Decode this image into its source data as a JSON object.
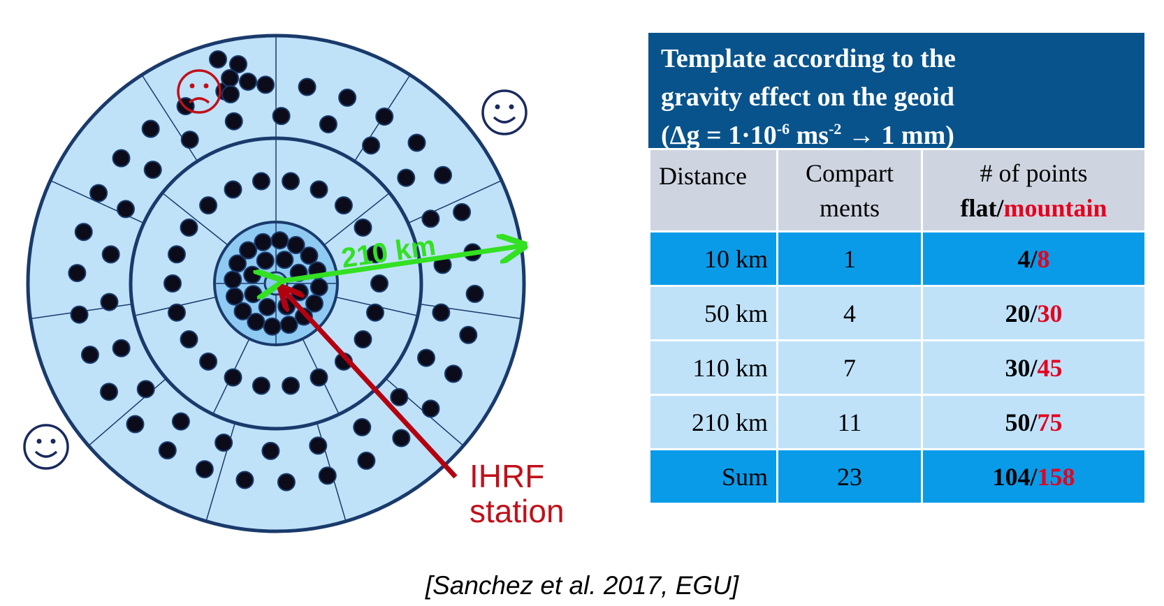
{
  "diagram": {
    "distance_label": "210 km",
    "station_label_line1": "IHRF",
    "station_label_line2": "station",
    "sad_face_icon": "frowning-face",
    "happy_face_icon": "smiling-face",
    "colors": {
      "zone_fill": "#bfe2f9",
      "inner_fill": "#8fcaf2",
      "ring_stroke": "#1a3a6b",
      "point": "#0b0b1a",
      "distance_arrow": "#33e022",
      "station_arrow": "#b30010",
      "sad_face": "#c0101a",
      "happy_face": "#1a2a5e"
    }
  },
  "table": {
    "title_line1": "Template according to the",
    "title_line2": "gravity effect on the geoid",
    "title_line3_prefix": "(Δg = 1·10",
    "title_line3_exp1": "-6",
    "title_line3_mid": " ms",
    "title_line3_exp2": "-2",
    "title_line3_suffix": " → 1 mm)",
    "headers": {
      "distance": "Distance",
      "compartments_line1": "Compart",
      "compartments_line2": "ments",
      "points_line1": "# of points",
      "points_flat": "flat",
      "points_sep": "/",
      "points_mountain": "mountain"
    },
    "rows": [
      {
        "distance": "10 km",
        "compartments": "1",
        "flat": "4",
        "mountain": "8"
      },
      {
        "distance": "50 km",
        "compartments": "4",
        "flat": "20",
        "mountain": "30"
      },
      {
        "distance": "110 km",
        "compartments": "7",
        "flat": "30",
        "mountain": "45"
      },
      {
        "distance": "210 km",
        "compartments": "11",
        "flat": "50",
        "mountain": "75"
      },
      {
        "distance": "Sum",
        "compartments": "23",
        "flat": "104",
        "mountain": "158"
      }
    ],
    "separator": "/",
    "colors": {
      "header_bg": "#08538c",
      "column_header_bg": "#cfd5e0",
      "row_bright": "#0a9be8",
      "row_light": "#bfe2f9",
      "mountain_text": "#e5001f"
    }
  },
  "citation": "[Sanchez et al. 2017, EGU]"
}
